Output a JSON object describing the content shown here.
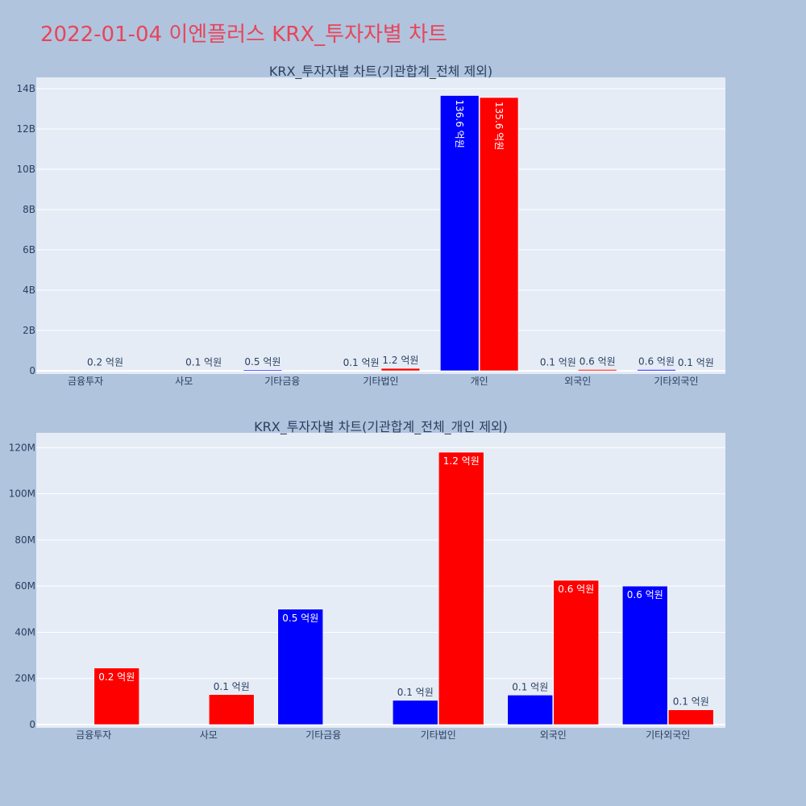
{
  "page_title": "2022-01-04 이엔플러스 KRX_투자자별 차트",
  "colors": {
    "page_background": "#b0c4de",
    "plot_background": "#e5ecf6",
    "title": "#e8455a",
    "series_blue": "#0000ff",
    "series_red": "#ff0000",
    "text": "#2a3f5f"
  },
  "chart_data": [
    {
      "type": "bar",
      "title": "KRX_투자자별 차트(기관합계_전체 제외)",
      "categories": [
        "금융투자",
        "사모",
        "기타금융",
        "기타법인",
        "개인",
        "외국인",
        "기타외국인"
      ],
      "yticks": [
        "0",
        "2B",
        "4B",
        "6B",
        "8B",
        "10B",
        "12B",
        "14B"
      ],
      "ylim": [
        0,
        14400000000
      ],
      "grid": true,
      "series": [
        {
          "color": "#0000ff",
          "values": [
            0,
            0,
            50000000,
            10000000,
            13660000000,
            13000000,
            60000000
          ],
          "labels": [
            "",
            "",
            "0.5 억원",
            "0.1 억원",
            "136.6 억원",
            "0.1 억원",
            "0.6 억원"
          ]
        },
        {
          "color": "#ff0000",
          "values": [
            24000000,
            13000000,
            0,
            118000000,
            13560000000,
            62000000,
            6000000
          ],
          "labels": [
            "0.2 억원",
            "0.1 억원",
            "",
            "1.2 억원",
            "135.6 억원",
            "0.6 억원",
            "0.1 억원"
          ]
        }
      ]
    },
    {
      "type": "bar",
      "title": "KRX_투자자별 차트(기관합계_전체_개인 제외)",
      "categories": [
        "금융투자",
        "사모",
        "기타금융",
        "기타법인",
        "외국인",
        "기타외국인"
      ],
      "yticks": [
        "0",
        "20M",
        "40M",
        "60M",
        "80M",
        "100M",
        "120M"
      ],
      "ylim": [
        0,
        125000000
      ],
      "grid": true,
      "series": [
        {
          "color": "#0000ff",
          "values": [
            0,
            0,
            50000000,
            10500000,
            12800000,
            60000000
          ],
          "labels": [
            "",
            "",
            "0.5 억원",
            "0.1 억원",
            "0.1 억원",
            "0.6 억원"
          ]
        },
        {
          "color": "#ff0000",
          "values": [
            24500000,
            13000000,
            0,
            118000000,
            62500000,
            6400000
          ],
          "labels": [
            "0.2 억원",
            "0.1 억원",
            "",
            "1.2 억원",
            "0.6 억원",
            "0.1 억원"
          ]
        }
      ]
    }
  ]
}
